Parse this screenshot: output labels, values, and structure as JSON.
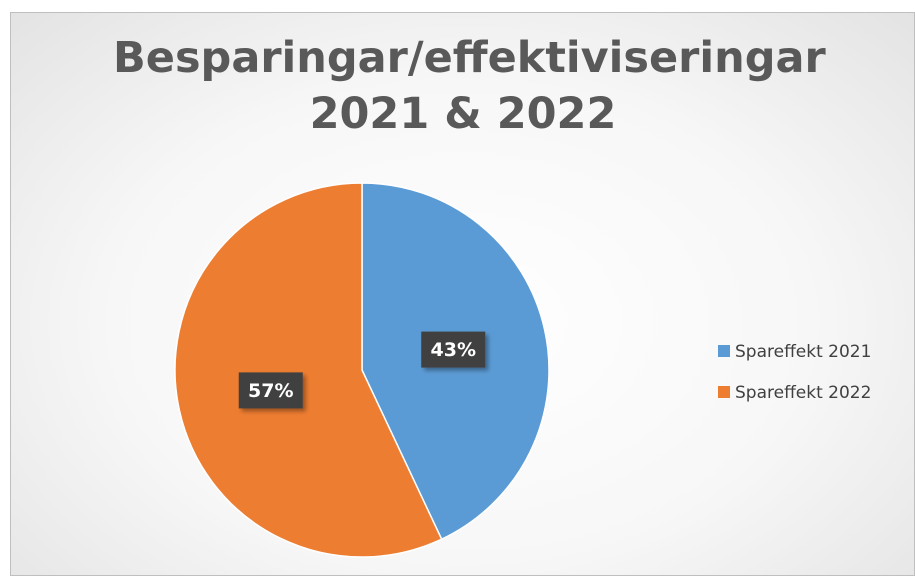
{
  "chart_data": {
    "type": "pie",
    "title": "Besparingar/effektiviseringar 2021 & 2022",
    "categories": [
      "Spareffekt 2021",
      "Spareffekt 2022"
    ],
    "values": [
      43,
      57
    ],
    "value_labels": [
      "43%",
      "57%"
    ],
    "colors": [
      "#5b9bd5",
      "#ed7d31"
    ],
    "legend": "right"
  }
}
